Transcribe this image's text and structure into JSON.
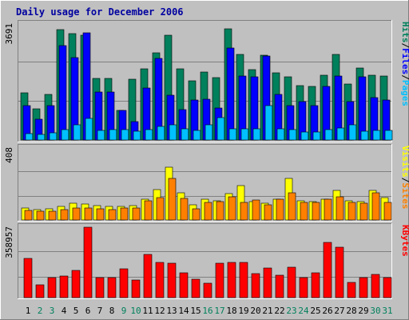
{
  "chart_data": {
    "type": "bar",
    "title": "Daily usage for December 2006",
    "x": [
      "1",
      "2",
      "3",
      "4",
      "5",
      "6",
      "7",
      "8",
      "9",
      "10",
      "11",
      "12",
      "13",
      "14",
      "15",
      "16",
      "17",
      "18",
      "19",
      "20",
      "21",
      "22",
      "23",
      "24",
      "25",
      "26",
      "27",
      "28",
      "29",
      "30",
      "31"
    ],
    "weekend_days": [
      2,
      3,
      9,
      10,
      16,
      17,
      23,
      24,
      30,
      31
    ],
    "colors": {
      "hits": "#00805C",
      "files": "#0000FF",
      "pages": "#00C0FF",
      "visits": "#FFFF00",
      "sites": "#FF8000",
      "kbytes": "#FF0000",
      "weekday_label": "#000000",
      "weekend_label": "#00805C",
      "title": "#0000A0"
    },
    "panels": [
      {
        "id": "hits-files-pages",
        "ymax_label": "3691",
        "ylim": [
          0,
          3691
        ],
        "right_label": [
          "Pages",
          "/",
          "Files",
          "/",
          "Hits"
        ],
        "right_label_colors": [
          "#00C0FF",
          "#000000",
          "#0000FF",
          "#000000",
          "#00805C"
        ],
        "series": [
          {
            "name": "Hits",
            "color": "#00805C",
            "values": [
              1520,
              1010,
              1460,
              3570,
              3440,
              3370,
              2000,
              2000,
              950,
              1960,
              2290,
              2810,
              3380,
              2300,
              1910,
              2200,
              2010,
              3600,
              2760,
              2280,
              2730,
              2180,
              2040,
              1760,
              1720,
              2100,
              2770,
              1800,
              2320,
              2100,
              2060
            ]
          },
          {
            "name": "Files",
            "color": "#0000FF",
            "values": [
              1110,
              680,
              1100,
              3040,
              2650,
              3450,
              1550,
              1560,
              960,
              600,
              1690,
              2620,
              1440,
              980,
              1300,
              1320,
              1040,
              2960,
              2060,
              2030,
              2710,
              1460,
              1110,
              1230,
              1110,
              1740,
              2060,
              1240,
              2040,
              1360,
              1290
            ]
          },
          {
            "name": "Pages",
            "color": "#00C0FF",
            "values": [
              200,
              190,
              220,
              330,
              480,
              700,
              310,
              340,
              340,
              280,
              340,
              450,
              500,
              360,
              310,
              480,
              720,
              370,
              360,
              350,
              1100,
              360,
              340,
              250,
              250,
              330,
              390,
              490,
              280,
              310,
              300
            ]
          }
        ]
      },
      {
        "id": "visits-sites",
        "ymax_label": "408",
        "ylim": [
          0,
          408
        ],
        "right_label": [
          "Sites",
          "/",
          "Visits"
        ],
        "right_label_colors": [
          "#FF8000",
          "#000000",
          "#FFFF00"
        ],
        "series": [
          {
            "name": "Visits",
            "color": "#FFFF00",
            "values": [
              70,
              60,
              66,
              78,
              95,
              90,
              84,
              80,
              80,
              82,
              120,
              174,
              302,
              157,
              88,
              121,
              110,
              150,
              196,
              107,
              95,
              118,
              238,
              108,
              106,
              120,
              170,
              110,
              106,
              170,
              130
            ]
          },
          {
            "name": "Sites",
            "color": "#FF8000",
            "values": [
              55,
              50,
              52,
              60,
              70,
              68,
              64,
              58,
              70,
              70,
              110,
              130,
              238,
              124,
              65,
              101,
              106,
              131,
              103,
              113,
              85,
              120,
              157,
              100,
              101,
              120,
              132,
              100,
              96,
              156,
              102
            ]
          }
        ]
      },
      {
        "id": "kbytes",
        "ymax_label": "358957",
        "ylim": [
          0,
          358957
        ],
        "right_label": [
          "KBytes"
        ],
        "right_label_colors": [
          "#FF0000"
        ],
        "series": [
          {
            "name": "KBytes",
            "color": "#FF0000",
            "values": [
              198000,
              64000,
              101000,
              112000,
              140000,
              358957,
              104000,
              103000,
              145000,
              90000,
              222000,
              181000,
              174000,
              128000,
              95000,
              73000,
              175000,
              181000,
              178000,
              123000,
              149000,
              113000,
              153000,
              100000,
              128000,
              280000,
              256000,
              77000,
              102000,
              118000,
              102000
            ]
          }
        ]
      }
    ]
  }
}
